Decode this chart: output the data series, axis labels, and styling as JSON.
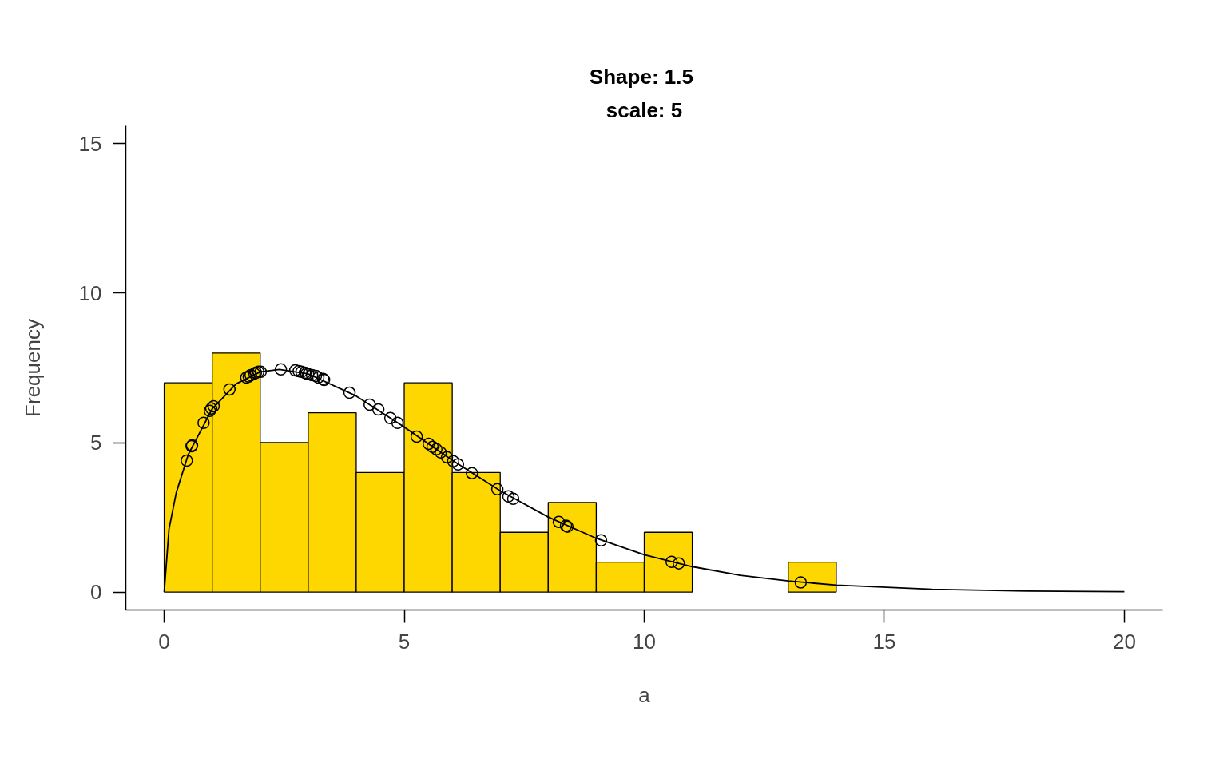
{
  "chart_data": {
    "type": "histogram",
    "title": "Shape:  1.5",
    "subtitle": "scale: 5",
    "xlabel": "a",
    "ylabel": "Frequency",
    "bins": [
      0,
      1,
      2,
      3,
      4,
      5,
      6,
      7,
      8,
      9,
      10,
      11,
      12,
      13,
      14
    ],
    "values": [
      7,
      8,
      5,
      6,
      4,
      7,
      4,
      2,
      3,
      1,
      2,
      0,
      0,
      1
    ],
    "color": "#ffd700",
    "xlim": [
      -0.8,
      20.8
    ],
    "ylim": [
      -0.6,
      15.6
    ],
    "xticks": [
      0,
      5,
      10,
      15,
      20
    ],
    "yticks": [
      0,
      5,
      10,
      15
    ],
    "grid": false,
    "series": [
      {
        "type": "line",
        "color": "#000000",
        "x": [
          0,
          0.1,
          0.25,
          0.5,
          1,
          1.5,
          2,
          2.4,
          3,
          4,
          5,
          6,
          7,
          8,
          9,
          10,
          11,
          12,
          13,
          14,
          16,
          18,
          20
        ],
        "values": [
          0,
          2.11,
          3.32,
          4.6,
          6.13,
          6.97,
          7.37,
          7.45,
          7.3,
          6.56,
          5.52,
          4.41,
          3.39,
          2.51,
          1.8,
          1.25,
          0.85,
          0.56,
          0.37,
          0.23,
          0.09,
          0.03,
          0.01
        ]
      },
      {
        "type": "scatter",
        "marker": "circle",
        "color": "#000000",
        "x": [
          0.47,
          0.57,
          0.58,
          0.82,
          0.95,
          0.98,
          1.03,
          1.36,
          1.71,
          1.76,
          1.8,
          1.88,
          1.91,
          1.96,
          2.01,
          2.43,
          2.73,
          2.8,
          2.86,
          2.93,
          2.96,
          3.0,
          3.08,
          3.16,
          3.21,
          3.31,
          3.33,
          3.86,
          4.28,
          4.46,
          4.71,
          4.86,
          5.26,
          5.51,
          5.59,
          5.67,
          5.76,
          5.89,
          6.02,
          6.12,
          6.41,
          6.94,
          7.17,
          7.27,
          8.22,
          8.37,
          8.4,
          9.1,
          10.57,
          10.72,
          13.26
        ],
        "values": [
          4.4,
          4.88,
          4.91,
          5.66,
          6.06,
          6.14,
          6.22,
          6.78,
          7.18,
          7.21,
          7.26,
          7.31,
          7.34,
          7.37,
          7.37,
          7.45,
          7.42,
          7.39,
          7.37,
          7.34,
          7.31,
          7.29,
          7.26,
          7.23,
          7.18,
          7.13,
          7.1,
          6.67,
          6.27,
          6.11,
          5.82,
          5.66,
          5.2,
          4.96,
          4.86,
          4.78,
          4.67,
          4.51,
          4.38,
          4.27,
          3.98,
          3.44,
          3.2,
          3.12,
          2.35,
          2.22,
          2.19,
          1.73,
          1.01,
          0.96,
          0.32
        ]
      }
    ]
  }
}
